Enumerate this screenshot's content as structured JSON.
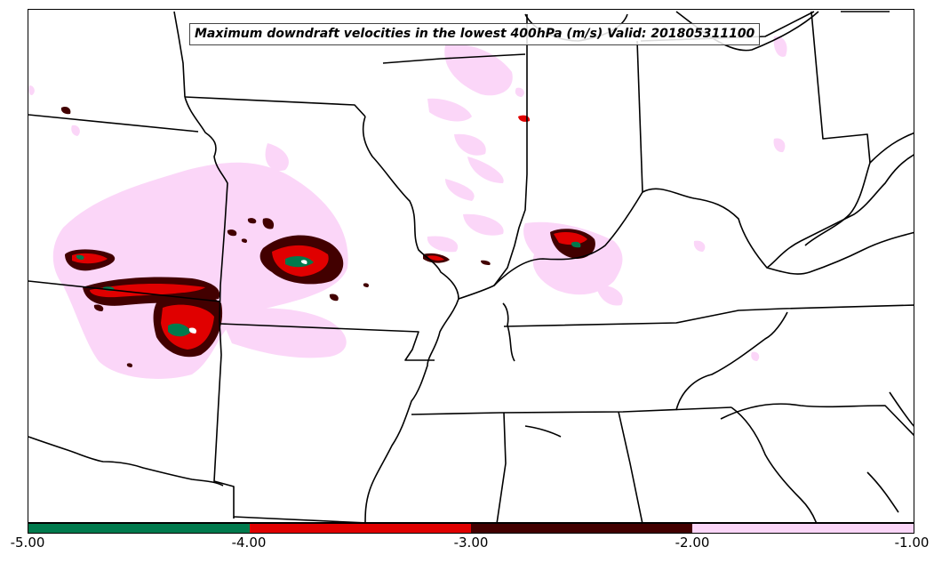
{
  "title": "Maximum downdraft velocities in the lowest 400hPa (m/s) Valid: 201805311100",
  "colorbar": {
    "colors": [
      "#007a4d",
      "#e00000",
      "#420000",
      "#fbd6f8"
    ],
    "ticks": [
      "-5.00",
      "-4.00",
      "-3.00",
      "-2.00",
      "-1.00"
    ],
    "range": [
      -5.0,
      -1.0
    ]
  },
  "map_style": {
    "background": "#ffffff",
    "boundary_color": "#000000",
    "shade_weak": "#fbd6f8",
    "shade_moderate": "#420000",
    "shade_strong": "#e00000",
    "shade_extreme": "#007a4d"
  }
}
